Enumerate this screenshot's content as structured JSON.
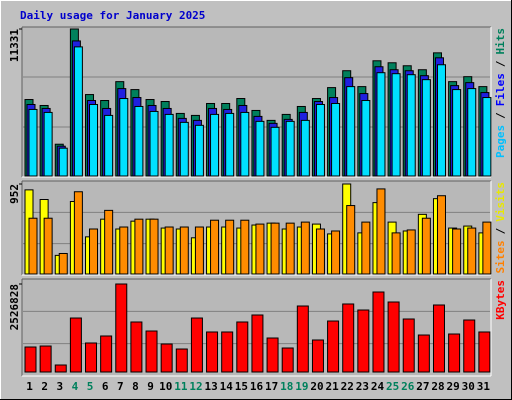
{
  "chart_data": {
    "title": "Daily usage for January 2025",
    "separator": "/",
    "categories": [
      "1",
      "2",
      "3",
      "4",
      "5",
      "6",
      "7",
      "8",
      "9",
      "10",
      "11",
      "12",
      "13",
      "14",
      "15",
      "16",
      "17",
      "18",
      "19",
      "20",
      "21",
      "22",
      "23",
      "24",
      "25",
      "26",
      "27",
      "28",
      "29",
      "30",
      "31"
    ],
    "category_colors": [
      "#000000",
      "#000000",
      "#000000",
      "#00805c",
      "#00805c",
      "#000000",
      "#000000",
      "#000000",
      "#000000",
      "#000000",
      "#00805c",
      "#00805c",
      "#000000",
      "#000000",
      "#000000",
      "#000000",
      "#000000",
      "#00805c",
      "#00805c",
      "#000000",
      "#000000",
      "#000000",
      "#000000",
      "#000000",
      "#00805c",
      "#00805c",
      "#000000",
      "#000000",
      "#000000",
      "#000000",
      "#000000"
    ],
    "panels": [
      {
        "type": "bar",
        "ylim": [
          0,
          11331
        ],
        "yticks": [
          11331
        ],
        "series": [
          {
            "name": "Hits",
            "color": "#00805c",
            "label_color": "#00805c",
            "values": [
              5895,
              5436,
              2450,
              11331,
              6278,
              5819,
              7273,
              6661,
              5895,
              5742,
              4823,
              4670,
              5589,
              5589,
              5972,
              5053,
              4287,
              4747,
              5359,
              5972,
              6814,
              8115,
              6890,
              8881,
              8728,
              8498,
              8192,
              9493,
              7273,
              7656,
              6890
            ]
          },
          {
            "name": "Files",
            "color": "#2020e0",
            "label_color": "#0000ff",
            "values": [
              5512,
              5206,
              2297,
              10412,
              5819,
              5206,
              6737,
              6048,
              5436,
              5206,
              4440,
              4287,
              5206,
              5130,
              5436,
              4594,
              4058,
              4364,
              4900,
              5742,
              6048,
              7579,
              6354,
              8422,
              8192,
              8115,
              7733,
              9111,
              6967,
              7197,
              6431
            ]
          },
          {
            "name": "Pages",
            "color": "#00e0ff",
            "label_color": "#00c0ff",
            "values": [
              5130,
              4900,
              2144,
              9953,
              5512,
              4670,
              5972,
              5359,
              4976,
              4747,
              4134,
              3905,
              4747,
              4823,
              4900,
              4211,
              3751,
              4211,
              4287,
              5512,
              5589,
              6890,
              5819,
              7962,
              7886,
              7809,
              7426,
              8575,
              6661,
              6737,
              6048
            ]
          }
        ]
      },
      {
        "type": "bar",
        "ylim": [
          0,
          952
        ],
        "yticks": [
          952
        ],
        "series": [
          {
            "name": "Visits",
            "color": "#ffff00",
            "label_color": "#e8e800",
            "values": [
              890,
              788,
              197,
              767,
              393,
              580,
              476,
              559,
              580,
              486,
              476,
              383,
              497,
              497,
              486,
              518,
              538,
              476,
              497,
              528,
              424,
              952,
              435,
              755,
              549,
              455,
              631,
              797,
              486,
              507,
              435
            ]
          },
          {
            "name": "Sites",
            "color": "#ff8c00",
            "label_color": "#ff8000",
            "values": [
              590,
              590,
              217,
              870,
              476,
              673,
              497,
              580,
              580,
              497,
              497,
              497,
              569,
              569,
              569,
              528,
              538,
              538,
              549,
              476,
              455,
              724,
              549,
              900,
              435,
              466,
              590,
              828,
              476,
              486,
              549
            ]
          }
        ]
      },
      {
        "type": "bar",
        "ylim": [
          0,
          2526828
        ],
        "yticks": [
          2526828
        ],
        "series": [
          {
            "name": "KBytes",
            "color": "#ff0000",
            "label_color": "#ff0000",
            "values": [
              717855,
              746000,
              201000,
              1550000,
              833000,
              1034000,
              2526828,
              1436000,
              1177000,
              804000,
              660000,
              1550000,
              1149000,
              1149000,
              1436000,
              1637000,
              976000,
              689000,
              1895000,
              919000,
              1464000,
              1953000,
              1780000,
              2297000,
              2010000,
              1522000,
              1062000,
              1924000,
              1091000,
              1493000,
              1149000
            ]
          }
        ]
      }
    ]
  }
}
